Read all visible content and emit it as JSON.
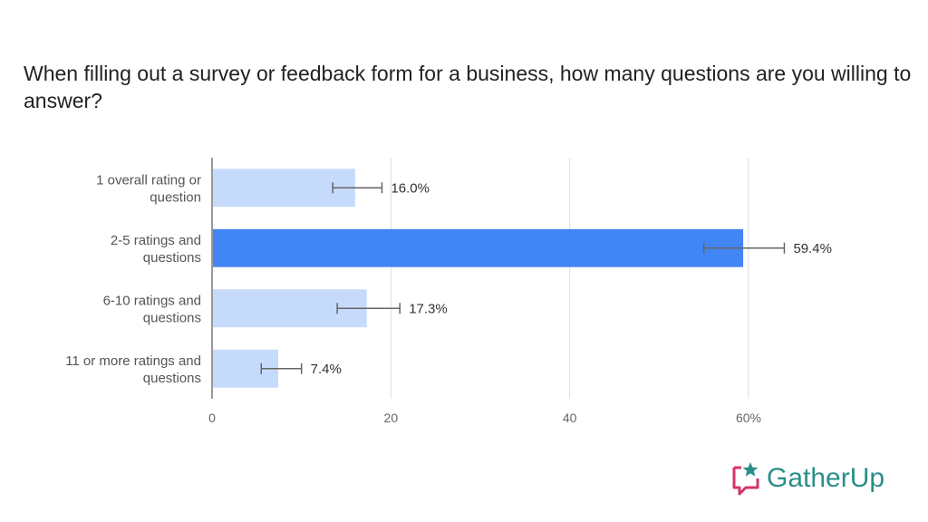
{
  "chart_data": {
    "type": "bar",
    "orientation": "horizontal",
    "title": "When filling out a survey or feedback form for a business, how many questions are you willing to answer?",
    "categories": [
      [
        "1 overall rating or",
        "question"
      ],
      [
        "2-5 ratings and",
        "questions"
      ],
      [
        "6-10 ratings and",
        "questions"
      ],
      [
        "11 or more ratings and",
        "questions"
      ]
    ],
    "values": [
      16.0,
      59.4,
      17.3,
      7.4
    ],
    "value_labels": [
      "16.0%",
      "59.4%",
      "17.3%",
      "7.4%"
    ],
    "error_bars": [
      [
        13.5,
        19.0
      ],
      [
        55.0,
        64.0
      ],
      [
        14.0,
        21.0
      ],
      [
        5.5,
        10.0
      ]
    ],
    "xlim": [
      0,
      60
    ],
    "xticks": [
      0,
      20,
      40,
      60
    ],
    "xtick_labels": [
      "0",
      "20",
      "40",
      "60%"
    ],
    "highlight_index": 1,
    "grid": true,
    "colors": {
      "bar": "#c6dafc",
      "highlight": "#4285f4",
      "grid": "#dddddd",
      "error_bar": "#666666"
    }
  },
  "brand": {
    "name": "GatherUp",
    "icon": "chat-star-icon",
    "color": "#2a8f8a",
    "icon_color": "#d6336c"
  }
}
